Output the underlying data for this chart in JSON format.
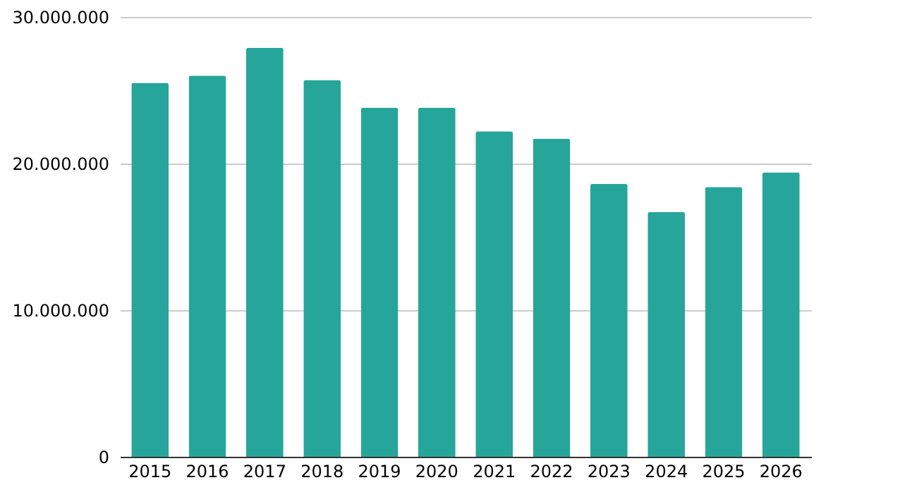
{
  "chart_data": {
    "type": "bar",
    "categories": [
      "2015",
      "2016",
      "2017",
      "2018",
      "2019",
      "2020",
      "2021",
      "2022",
      "2023",
      "2024",
      "2025",
      "2026"
    ],
    "values": [
      25500000,
      26000000,
      27900000,
      25700000,
      23800000,
      23800000,
      22200000,
      21700000,
      18600000,
      16700000,
      18400000,
      19400000
    ],
    "color": "#26a69a",
    "ylim": [
      0,
      30000000
    ],
    "yticks": [
      {
        "value": 0,
        "label": "0"
      },
      {
        "value": 10000000,
        "label": "10.000.000"
      },
      {
        "value": 20000000,
        "label": "20.000.000"
      },
      {
        "value": 30000000,
        "label": "30.000.000"
      }
    ],
    "grid": "y"
  }
}
